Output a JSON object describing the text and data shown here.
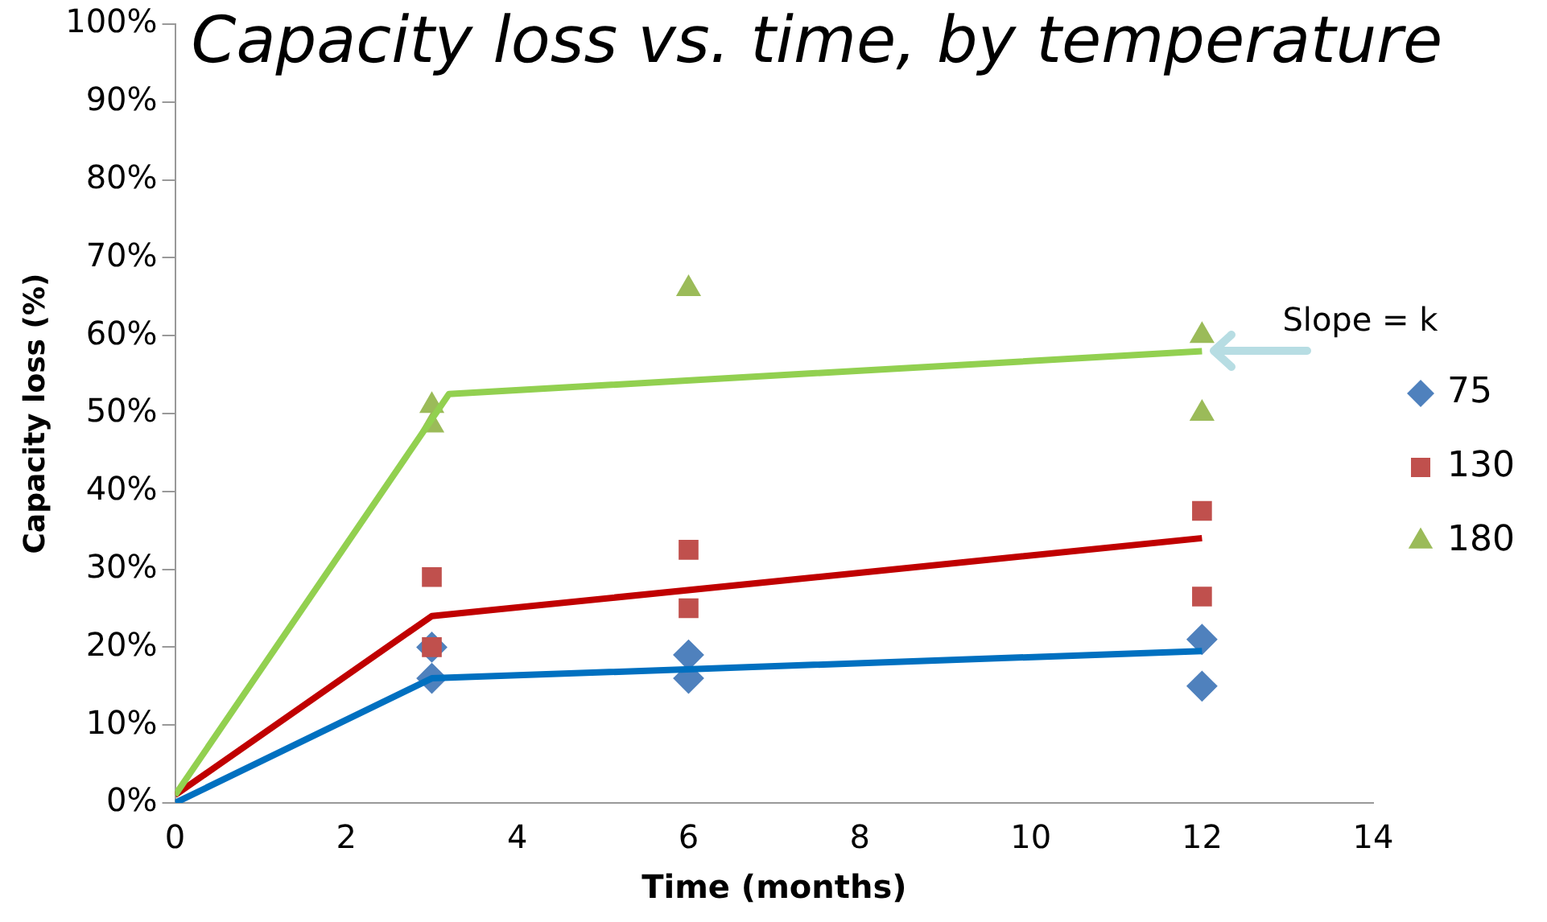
{
  "chart_data": {
    "type": "scatter",
    "title": "Capacity loss vs. time, by temperature",
    "xlabel": "Time (months)",
    "ylabel": "Capacity loss (%)",
    "xlim": [
      0,
      14
    ],
    "xticks": [
      0,
      2,
      4,
      6,
      8,
      10,
      12,
      14
    ],
    "ylim": [
      0,
      100
    ],
    "yticks": [
      {
        "value": 0,
        "label": "0%"
      },
      {
        "value": 10,
        "label": "10%"
      },
      {
        "value": 20,
        "label": "20%"
      },
      {
        "value": 30,
        "label": "30%"
      },
      {
        "value": 40,
        "label": "40%"
      },
      {
        "value": 50,
        "label": "50%"
      },
      {
        "value": 60,
        "label": "60%"
      },
      {
        "value": 70,
        "label": "70%"
      },
      {
        "value": 80,
        "label": "80%"
      },
      {
        "value": 90,
        "label": "90%"
      },
      {
        "value": 100,
        "label": "100%"
      }
    ],
    "grid": false,
    "legend": "right",
    "series": [
      {
        "name": "75",
        "marker": "diamond",
        "color": "#4f81bd",
        "x": [
          3,
          3,
          6,
          6,
          12,
          12
        ],
        "values": [
          16,
          20,
          19,
          16,
          21,
          15
        ]
      },
      {
        "name": "130",
        "marker": "square",
        "color": "#c0504d",
        "x": [
          3,
          3,
          6,
          6,
          12,
          12
        ],
        "values": [
          29,
          20,
          32.5,
          25,
          37.5,
          26.5
        ]
      },
      {
        "name": "180",
        "marker": "triangle",
        "color": "#9bbb59",
        "x": [
          3,
          3,
          6,
          12,
          12
        ],
        "values": [
          51,
          48.5,
          66,
          60,
          50
        ]
      },
      {
        "type": "line",
        "marker": "none",
        "color": "#0070c0",
        "x": [
          0,
          3,
          12
        ],
        "values": [
          0,
          16,
          19.5
        ]
      },
      {
        "type": "line",
        "marker": "none",
        "color": "#c00000",
        "x": [
          0,
          3,
          12
        ],
        "values": [
          1,
          24,
          34
        ]
      },
      {
        "type": "line",
        "marker": "none",
        "color": "#92d050",
        "x": [
          0,
          3.2,
          12
        ],
        "values": [
          1,
          52.5,
          58
        ]
      }
    ],
    "annotations": [
      {
        "text": "Slope = k",
        "x": 12,
        "y": 58
      }
    ]
  }
}
